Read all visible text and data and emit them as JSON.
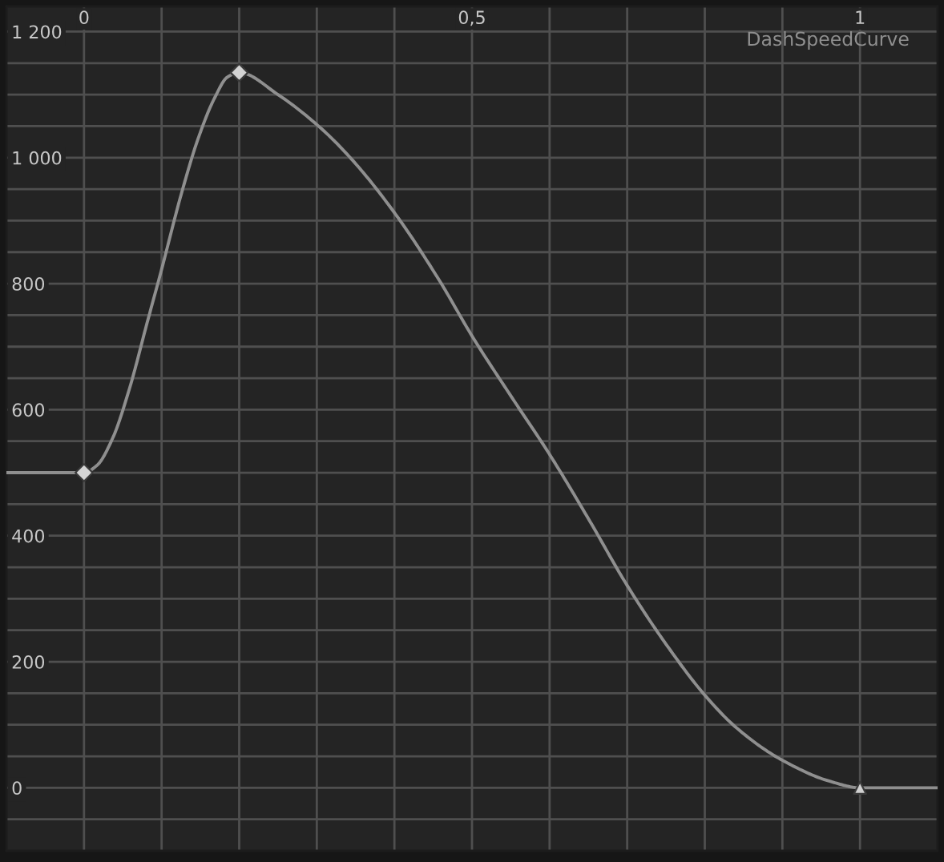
{
  "chart_data": {
    "type": "line",
    "series": [
      {
        "name": "DashSpeedCurve",
        "color": "#8f8f8f",
        "marker": "none",
        "line_style": "solid",
        "x": [
          -0.1,
          0,
          0.017,
          0.037,
          0.058,
          0.082,
          0.099,
          0.126,
          0.147,
          0.168,
          0.185,
          0.2,
          0.25,
          0.305,
          0.346,
          0.401,
          0.456,
          0.502,
          0.55,
          0.6,
          0.65,
          0.7,
          0.75,
          0.8,
          0.841,
          0.898,
          0.962,
          1.0,
          1.1
        ],
        "values": [
          500,
          500,
          512,
          555,
          631,
          741,
          818,
          945,
          1030,
          1094,
          1128,
          1135,
          1100,
          1047,
          996,
          911,
          809,
          713,
          622,
          529,
          427,
          321,
          228,
          147,
          95,
          45,
          10,
          0,
          0
        ]
      },
      {
        "type": "scatter",
        "color": "#d4d4d4",
        "marker": "diamond",
        "x": [
          0,
          0.2
        ],
        "values": [
          500,
          1135
        ]
      },
      {
        "type": "scatter",
        "color": "#cfcfcf",
        "marker": "triangle",
        "x": [
          1
        ],
        "values": [
          0
        ]
      }
    ],
    "xlim": [
      -0.1,
      1.1
    ],
    "ylim": [
      -100,
      1240
    ],
    "xticks": [
      0,
      {
        "value": 0.1,
        "label": null
      },
      {
        "value": 0.2,
        "label": null
      },
      {
        "value": 0.3,
        "label": null
      },
      {
        "value": 0.4,
        "label": null
      },
      {
        "value": 0.5,
        "label": "0,5"
      },
      {
        "value": 0.6,
        "label": null
      },
      {
        "value": 0.7,
        "label": null
      },
      {
        "value": 0.8,
        "label": null
      },
      {
        "value": 0.9,
        "label": null
      },
      1
    ],
    "yticks": [
      {
        "value": -50,
        "label": null
      },
      0,
      {
        "value": 50,
        "label": null
      },
      {
        "value": 100,
        "label": null
      },
      {
        "value": 150,
        "label": null
      },
      200,
      {
        "value": 250,
        "label": null
      },
      {
        "value": 300,
        "label": null
      },
      {
        "value": 350,
        "label": null
      },
      400,
      {
        "value": 450,
        "label": null
      },
      {
        "value": 500,
        "label": null
      },
      {
        "value": 550,
        "label": null
      },
      600,
      {
        "value": 650,
        "label": null
      },
      {
        "value": 700,
        "label": null
      },
      {
        "value": 750,
        "label": null
      },
      800,
      {
        "value": 850,
        "label": null
      },
      {
        "value": 900,
        "label": null
      },
      {
        "value": 950,
        "label": null
      },
      {
        "value": 1000,
        "label": "1 000"
      },
      {
        "value": 1050,
        "label": null
      },
      {
        "value": 1100,
        "label": null
      },
      {
        "value": 1150,
        "label": null
      },
      {
        "value": 1200,
        "label": "1 200"
      }
    ],
    "grid": true,
    "legend": "top right"
  }
}
